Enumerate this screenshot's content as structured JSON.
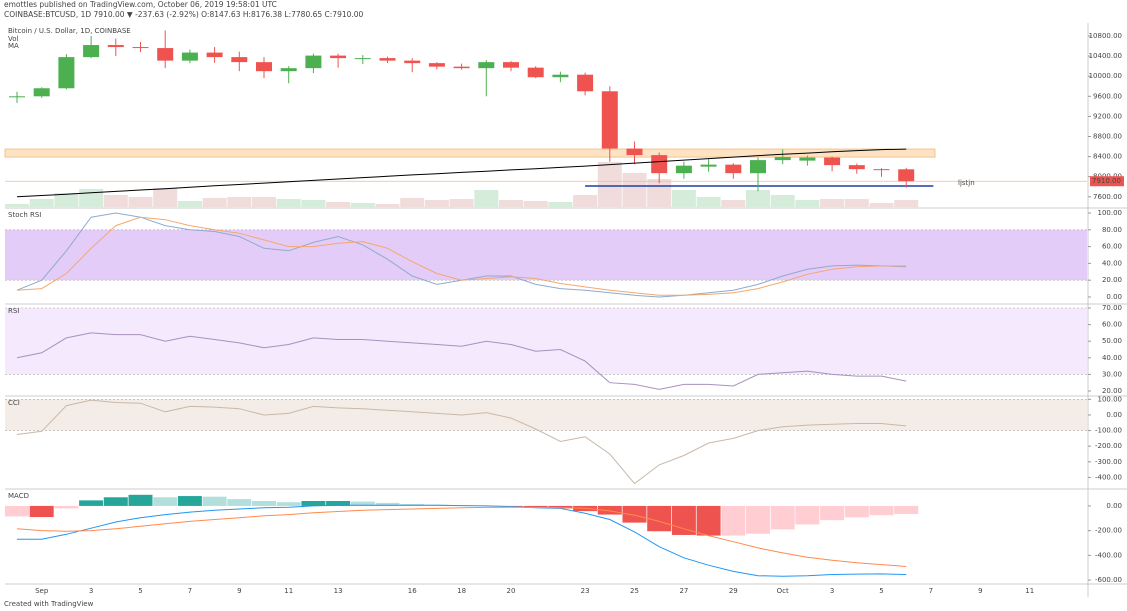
{
  "header": {
    "publisher": "emottles published on TradingView.com, October 06, 2019 19:58:01 UTC",
    "quote": "COINBASE:BTCUSD, 1D 7910.00 ▼ -237.63 (-2.92%) O:8147.63 H:8176.38 L:7780.65 C:7910.00"
  },
  "footer": "Created with TradingView",
  "chart_data": [
    {
      "type": "candlestick",
      "title": "Bitcoin / U.S. Dollar, 1D, COINBASE",
      "categories": [
        null,
        "Sep",
        null,
        "3",
        null,
        "5",
        null,
        "7",
        null,
        "9",
        null,
        "11",
        null,
        "13",
        null,
        null,
        "16",
        null,
        "18",
        null,
        "20",
        null,
        null,
        "23",
        null,
        "25",
        null,
        "27",
        null,
        "29",
        null,
        "Oct",
        null,
        "3",
        null,
        "5",
        null,
        "7",
        null,
        "9",
        null,
        "11"
      ],
      "open": [
        9580,
        9600,
        9760,
        10380,
        10620,
        10580,
        10560,
        10310,
        10470,
        10380,
        10280,
        10100,
        10160,
        10410,
        10360,
        10360,
        10310,
        10260,
        10190,
        10160,
        10280,
        10170,
        9980,
        10030,
        9700,
        8560,
        8430,
        8070,
        8200,
        8240,
        8070,
        8330,
        8320,
        8380,
        8230,
        8150,
        8147.63,
        null,
        null,
        null,
        null,
        null
      ],
      "high": [
        9690,
        9780,
        10440,
        10800,
        10750,
        10680,
        10910,
        10530,
        10580,
        10490,
        10380,
        10200,
        10450,
        10450,
        10420,
        10390,
        10360,
        10280,
        10250,
        10320,
        10300,
        10200,
        10090,
        10070,
        9800,
        8700,
        8480,
        8300,
        8350,
        8270,
        8380,
        8540,
        8420,
        8400,
        8260,
        8170,
        8176.38,
        null,
        null,
        null,
        null,
        null
      ],
      "low": [
        9470,
        9570,
        9740,
        10360,
        10400,
        10480,
        10160,
        10260,
        10270,
        10100,
        9960,
        9860,
        10060,
        10170,
        10240,
        10260,
        10080,
        10140,
        10130,
        9600,
        10100,
        9960,
        9880,
        9620,
        8300,
        8250,
        7870,
        7960,
        8100,
        7960,
        7710,
        8250,
        8220,
        8110,
        8060,
        8000,
        7780.65,
        null,
        null,
        null,
        null,
        null
      ],
      "close": [
        9600,
        9760,
        10380,
        10620,
        10580,
        10560,
        10310,
        10470,
        10380,
        10280,
        10100,
        10160,
        10410,
        10360,
        10360,
        10310,
        10260,
        10190,
        10160,
        10280,
        10170,
        9980,
        10030,
        9700,
        8560,
        8430,
        8070,
        8220,
        8240,
        8070,
        8330,
        8390,
        8380,
        8230,
        8150,
        8140,
        7910,
        null,
        null,
        null,
        null,
        null
      ],
      "up_color": "#4caf50",
      "down_color": "#ef5350",
      "series": [
        {
          "name": "Vol",
          "up_color": "#d6ecdb",
          "down_color": "#f1dcdc",
          "values": [
            3,
            8,
            14,
            18,
            12,
            10,
            19,
            6,
            9,
            10,
            10,
            8,
            7,
            5,
            4,
            3,
            9,
            7,
            8,
            17,
            7,
            6,
            5,
            12,
            45,
            34,
            28,
            17,
            10,
            7,
            17,
            12,
            7,
            8,
            8,
            4,
            7,
            null,
            null,
            null,
            null,
            null
          ]
        },
        {
          "name": "MA",
          "color": "#000000",
          "values": [
            7600,
            7625,
            7652,
            7680,
            7708,
            7735,
            7762,
            7790,
            7818,
            7845,
            7872,
            7900,
            7927,
            7955,
            7982,
            8008,
            8035,
            8060,
            8085,
            8110,
            8135,
            8160,
            8185,
            8210,
            8240,
            8270,
            8300,
            8330,
            8360,
            8390,
            8420,
            8445,
            8470,
            8495,
            8520,
            8540,
            8550,
            null,
            null,
            null,
            null,
            null
          ]
        }
      ],
      "zone": [
        8390,
        8550
      ],
      "zone_color": "#fde3c4",
      "support": 7815,
      "support_color": "#1e3fa8",
      "annotation": "ljstjn",
      "last_price": {
        "value": 7910,
        "label": "7910.00"
      },
      "ylim": [
        7397,
        11019
      ],
      "yticks": [
        {
          "value": 7600,
          "label": "7600.00"
        },
        {
          "value": 8000,
          "label": "8000.00"
        },
        {
          "value": 8400,
          "label": "8400.00"
        },
        {
          "value": 8800,
          "label": "8800.00"
        },
        {
          "value": 9200,
          "label": "9200.00"
        },
        {
          "value": 9600,
          "label": "9600.00"
        },
        {
          "value": 10000,
          "label": "10000.00"
        },
        {
          "value": 10400,
          "label": "10400.00"
        },
        {
          "value": 10800,
          "label": "10800.00"
        }
      ]
    },
    {
      "type": "line",
      "title": "Stoch RSI",
      "band": [
        20,
        80
      ],
      "band_color": "#e4ccf8",
      "series": [
        {
          "color": "#8faad0",
          "values": [
            8,
            20,
            55,
            95,
            100,
            95,
            85,
            80,
            78,
            72,
            58,
            55,
            65,
            72,
            62,
            45,
            25,
            15,
            20,
            25,
            25,
            15,
            10,
            8,
            5,
            2,
            0,
            2,
            5,
            8,
            15,
            25,
            33,
            37,
            38,
            37,
            36
          ]
        },
        {
          "color": "#f4a870",
          "values": [
            8,
            10,
            28,
            58,
            85,
            95,
            92,
            85,
            80,
            76,
            68,
            60,
            60,
            64,
            66,
            58,
            42,
            28,
            20,
            22,
            24,
            22,
            16,
            12,
            8,
            5,
            2,
            2,
            3,
            5,
            10,
            18,
            27,
            33,
            36,
            37,
            37
          ]
        }
      ],
      "ylim": [
        -7.2,
        104.8
      ],
      "yticks": [
        {
          "value": 0,
          "label": "0.00"
        },
        {
          "value": 20,
          "label": "20.00"
        },
        {
          "value": 40,
          "label": "40.00"
        },
        {
          "value": 60,
          "label": "60.00"
        },
        {
          "value": 80,
          "label": "80.00"
        },
        {
          "value": 100,
          "label": "100.00"
        }
      ]
    },
    {
      "type": "line",
      "title": "RSI",
      "band": [
        30,
        70
      ],
      "band_color": "#f4e9fd",
      "series": [
        {
          "color": "#a990bd",
          "values": [
            40,
            43,
            52,
            55,
            54,
            54,
            50,
            53,
            51,
            49,
            46,
            48,
            52,
            51,
            51,
            50,
            49,
            48,
            47,
            50,
            48,
            44,
            45,
            38,
            25,
            24,
            21,
            24,
            24,
            23,
            30,
            31,
            32,
            30,
            29,
            29,
            26
          ]
        }
      ],
      "ylim": [
        17.6,
        71.8
      ],
      "yticks": [
        {
          "value": 20,
          "label": "20.00"
        },
        {
          "value": 30,
          "label": "30.00"
        },
        {
          "value": 40,
          "label": "40.00"
        },
        {
          "value": 50,
          "label": "50.00"
        },
        {
          "value": 60,
          "label": "60.00"
        },
        {
          "value": 70,
          "label": "70.00"
        }
      ]
    },
    {
      "type": "line",
      "title": "CCI",
      "band": [
        -100,
        100
      ],
      "band_color": "#f4ede7",
      "series": [
        {
          "color": "#c9b8a8",
          "values": [
            -125,
            -105,
            60,
            95,
            80,
            75,
            20,
            55,
            50,
            40,
            0,
            10,
            55,
            45,
            40,
            30,
            20,
            10,
            0,
            15,
            -20,
            -90,
            -170,
            -140,
            -250,
            -440,
            -320,
            -260,
            -180,
            -150,
            -100,
            -75,
            -65,
            -60,
            -55,
            -55,
            -70
          ]
        }
      ],
      "ylim": [
        -468,
        115
      ],
      "yticks": [
        {
          "value": -400,
          "label": "-400.00"
        },
        {
          "value": -300,
          "label": "-300.00"
        },
        {
          "value": -200,
          "label": "-200.00"
        },
        {
          "value": -100,
          "label": "-100.00"
        },
        {
          "value": 0,
          "label": "0.00"
        },
        {
          "value": 100,
          "label": "100.00"
        }
      ]
    },
    {
      "type": "combo",
      "title": "MACD",
      "series": [
        {
          "type": "bar",
          "colors": [
            "#26a69a",
            "#b2dfdb",
            "#ffcdd2",
            "#ef5350"
          ],
          "values": [
            -85,
            -90,
            -20,
            45,
            70,
            90,
            70,
            80,
            75,
            55,
            40,
            30,
            40,
            40,
            35,
            25,
            15,
            10,
            5,
            0,
            -5,
            -15,
            -20,
            -42,
            -70,
            -135,
            -205,
            -235,
            -240,
            -240,
            -225,
            -190,
            -150,
            -115,
            -92,
            -75,
            -65
          ]
        },
        {
          "type": "line",
          "color": "#2196f3",
          "values": [
            -270,
            -270,
            -230,
            -180,
            -130,
            -95,
            -70,
            -50,
            -35,
            -25,
            -15,
            -10,
            0,
            5,
            5,
            5,
            5,
            5,
            3,
            0,
            -5,
            -15,
            -20,
            -60,
            -110,
            -210,
            -330,
            -420,
            -480,
            -530,
            -565,
            -570,
            -565,
            -555,
            -552,
            -550,
            -555
          ]
        },
        {
          "type": "line",
          "color": "#ff8a4c",
          "values": [
            -185,
            -200,
            -205,
            -200,
            -185,
            -165,
            -145,
            -125,
            -110,
            -95,
            -80,
            -70,
            -55,
            -45,
            -35,
            -30,
            -25,
            -20,
            -15,
            -12,
            -10,
            -12,
            -14,
            -18,
            -40,
            -75,
            -125,
            -185,
            -240,
            -290,
            -340,
            -380,
            -415,
            -440,
            -460,
            -475,
            -490
          ]
        }
      ],
      "ylim": [
        -624,
        129
      ],
      "yticks": [
        {
          "value": -600,
          "label": "-600.00"
        },
        {
          "value": -400,
          "label": "-400.00"
        },
        {
          "value": -200,
          "label": "-200.00"
        },
        {
          "value": 0,
          "label": "0.00"
        }
      ]
    }
  ]
}
